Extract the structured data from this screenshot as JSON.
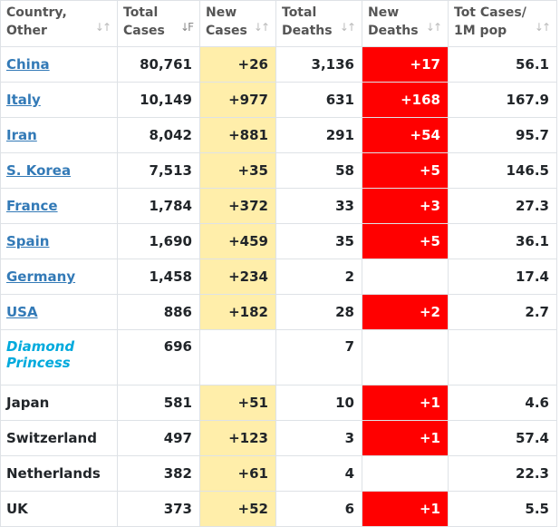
{
  "headers": [
    {
      "line1": "Country,",
      "line2": "Other"
    },
    {
      "line1": "Total",
      "line2": "Cases"
    },
    {
      "line1": "New",
      "line2": "Cases"
    },
    {
      "line1": "Total",
      "line2": "Deaths"
    },
    {
      "line1": "New",
      "line2": "Deaths"
    },
    {
      "line1": "Tot Cases/",
      "line2": "1M pop"
    }
  ],
  "rows": [
    {
      "country": "China",
      "total_cases": "80,761",
      "new_cases": "+26",
      "total_deaths": "3,136",
      "new_deaths": "+17",
      "per_million": "56.1"
    },
    {
      "country": "Italy",
      "total_cases": "10,149",
      "new_cases": "+977",
      "total_deaths": "631",
      "new_deaths": "+168",
      "per_million": "167.9"
    },
    {
      "country": "Iran",
      "total_cases": "8,042",
      "new_cases": "+881",
      "total_deaths": "291",
      "new_deaths": "+54",
      "per_million": "95.7"
    },
    {
      "country": "S. Korea",
      "total_cases": "7,513",
      "new_cases": "+35",
      "total_deaths": "58",
      "new_deaths": "+5",
      "per_million": "146.5"
    },
    {
      "country": "France",
      "total_cases": "1,784",
      "new_cases": "+372",
      "total_deaths": "33",
      "new_deaths": "+3",
      "per_million": "27.3"
    },
    {
      "country": "Spain",
      "total_cases": "1,690",
      "new_cases": "+459",
      "total_deaths": "35",
      "new_deaths": "+5",
      "per_million": "36.1"
    },
    {
      "country": "Germany",
      "total_cases": "1,458",
      "new_cases": "+234",
      "total_deaths": "2",
      "new_deaths": "",
      "per_million": "17.4"
    },
    {
      "country": "USA",
      "total_cases": "886",
      "new_cases": "+182",
      "total_deaths": "28",
      "new_deaths": "+2",
      "per_million": "2.7"
    },
    {
      "country_line1": "Diamond",
      "country_line2": "Princess",
      "total_cases": "696",
      "new_cases": "",
      "total_deaths": "7",
      "new_deaths": "",
      "per_million": ""
    },
    {
      "country": "Japan",
      "total_cases": "581",
      "new_cases": "+51",
      "total_deaths": "10",
      "new_deaths": "+1",
      "per_million": "4.6"
    },
    {
      "country": "Switzerland",
      "total_cases": "497",
      "new_cases": "+123",
      "total_deaths": "3",
      "new_deaths": "+1",
      "per_million": "57.4"
    },
    {
      "country": "Netherlands",
      "total_cases": "382",
      "new_cases": "+61",
      "total_deaths": "4",
      "new_deaths": "",
      "per_million": "22.3"
    },
    {
      "country": "UK",
      "total_cases": "373",
      "new_cases": "+52",
      "total_deaths": "6",
      "new_deaths": "+1",
      "per_million": "5.5"
    }
  ],
  "icons": {
    "sort": "sort-arrows-icon",
    "sort_active": "sort-descending-icon"
  },
  "colors": {
    "link": "#337ab7",
    "special": "#00aadd",
    "new_cases_bg": "#ffeeaa",
    "new_deaths_bg": "#ff0000"
  }
}
